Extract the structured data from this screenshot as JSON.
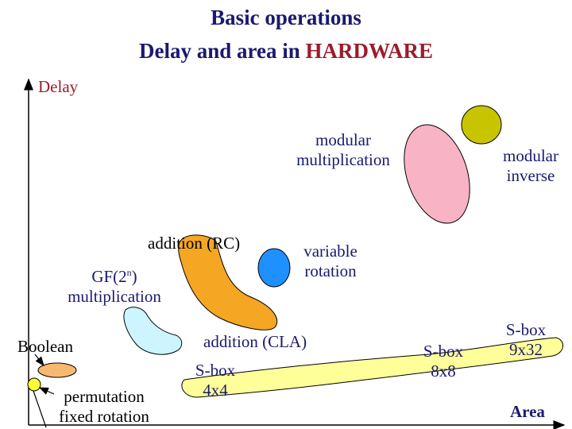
{
  "title": {
    "line1": "Basic operations",
    "line2_prefix": "Delay and area in ",
    "line2_highlight": "HARDWARE"
  },
  "axes": {
    "y_label": "Delay",
    "x_label": "Area"
  },
  "labels": {
    "modular_multiplication": [
      "modular",
      "multiplication"
    ],
    "modular_inverse": [
      "modular",
      "inverse"
    ],
    "addition_rc": "addition (RC)",
    "variable_rotation": [
      "variable",
      "rotation"
    ],
    "gf_mult": {
      "prefix": "GF(2",
      "sup": "n",
      "suffix": ")",
      "line2": "multiplication"
    },
    "boolean": "Boolean",
    "permutation": [
      "permutation",
      "fixed rotation"
    ],
    "addition_cla": "addition (CLA)",
    "sbox_4x4": [
      "S-box",
      "4x4"
    ],
    "sbox_8x8": [
      "S-box",
      "8x8"
    ],
    "sbox_9x32": [
      "S-box",
      "9x32"
    ]
  },
  "colors": {
    "text_dark": "#1a1a6e",
    "text_red": "#9b1c2a",
    "modular_multiplication": "#f8b4c4",
    "modular_inverse": "#c9c400",
    "addition_rc": "#f5a623",
    "variable_rotation": "#1e90ff",
    "gf_multiplication": "#ccf5ff",
    "boolean": "#f8b870",
    "permutation": "#ffff33",
    "addition_cla": "#ffff99"
  }
}
